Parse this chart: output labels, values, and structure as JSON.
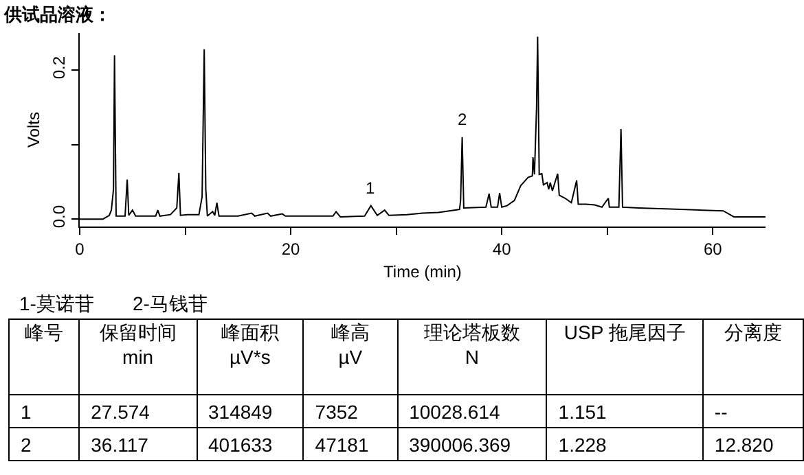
{
  "chart_data": [
    {
      "type": "line",
      "title": "供试品溶液：",
      "xlabel": "Time (min)",
      "ylabel": "Volts",
      "color": "#000000",
      "xlim": [
        0,
        65
      ],
      "ylim": [
        -0.01,
        0.25
      ],
      "xticks": [
        0,
        {
          "value": 10,
          "label": null
        },
        20,
        {
          "value": 30,
          "label": null
        },
        40,
        {
          "value": 50,
          "label": null
        },
        60
      ],
      "yticks": [
        {
          "value": 0,
          "label": "0.0"
        },
        {
          "value": 0.1,
          "label": null
        },
        0.2
      ],
      "annotations": [
        {
          "text": "1",
          "x": 27.6,
          "y": 0.018
        },
        {
          "text": "2",
          "x": 36.25,
          "y": 0.11
        }
      ],
      "x": [
        0,
        2.2,
        2.8,
        3.0,
        3.2,
        3.3,
        3.45,
        4.3,
        4.5,
        4.65,
        5.0,
        5.3,
        7.2,
        7.4,
        7.6,
        8.6,
        9.2,
        9.4,
        9.55,
        10.2,
        11.3,
        11.6,
        11.8,
        11.95,
        12.1,
        12.6,
        12.8,
        13.0,
        13.2,
        15.0,
        16.3,
        16.6,
        17.8,
        18.1,
        19.2,
        19.5,
        24.0,
        24.3,
        24.7,
        27.0,
        27.6,
        28.2,
        28.9,
        29.3,
        31.0,
        32.5,
        34.0,
        35.5,
        36.0,
        36.1,
        36.25,
        36.4,
        38.5,
        38.8,
        39.0,
        39.6,
        39.8,
        40.0,
        40.5,
        41.2,
        41.8,
        42.5,
        42.9,
        42.96,
        43.1,
        43.3,
        43.4,
        43.55,
        43.8,
        43.95,
        44.3,
        44.45,
        44.6,
        44.8,
        45.3,
        45.45,
        46.0,
        46.6,
        47.1,
        47.25,
        48.0,
        48.8,
        49.5,
        50.1,
        50.2,
        51.1,
        51.3,
        51.45,
        53.0,
        57.0,
        61.0,
        62.0,
        65
      ],
      "values": [
        0,
        0,
        0.005,
        0.012,
        0.04,
        0.22,
        0.004,
        0.004,
        0.053,
        0.005,
        0.012,
        0.004,
        0.004,
        0.012,
        0.004,
        0.006,
        0.015,
        0.062,
        0.005,
        0.006,
        0.006,
        0.03,
        0.228,
        0.04,
        0.004,
        0.01,
        0.005,
        0.022,
        0.004,
        0.004,
        0.008,
        0.004,
        0.008,
        0.004,
        0.007,
        0.004,
        0.004,
        0.01,
        0.003,
        0.004,
        0.018,
        0.005,
        0.012,
        0.005,
        0.006,
        0.008,
        0.009,
        0.012,
        0.013,
        0.025,
        0.11,
        0.015,
        0.016,
        0.034,
        0.016,
        0.016,
        0.035,
        0.016,
        0.018,
        0.025,
        0.045,
        0.056,
        0.058,
        0.083,
        0.06,
        0.15,
        0.245,
        0.06,
        0.061,
        0.046,
        0.049,
        0.04,
        0.049,
        0.038,
        0.061,
        0.032,
        0.028,
        0.022,
        0.052,
        0.02,
        0.02,
        0.019,
        0.016,
        0.028,
        0.016,
        0.016,
        0.121,
        0.016,
        0.015,
        0.013,
        0.011,
        0.003,
        0.003
      ]
    },
    {
      "type": "other",
      "annotations": [
        "1-莫诺苷",
        "2-马钱苷"
      ],
      "categories": [
        "峰号",
        "保留时间\nmin",
        "峰面积\nµV*s",
        "峰高\nµV",
        "理论塔板数\nN",
        "USP 拖尾因子",
        "分离度"
      ],
      "cell_labels": [
        [
          "1",
          "27.574",
          "314849",
          "7352",
          "10028.614",
          "1.151",
          "--"
        ],
        [
          "2",
          "36.117",
          "401633",
          "47181",
          "390006.369",
          "1.228",
          "12.820"
        ]
      ]
    }
  ]
}
